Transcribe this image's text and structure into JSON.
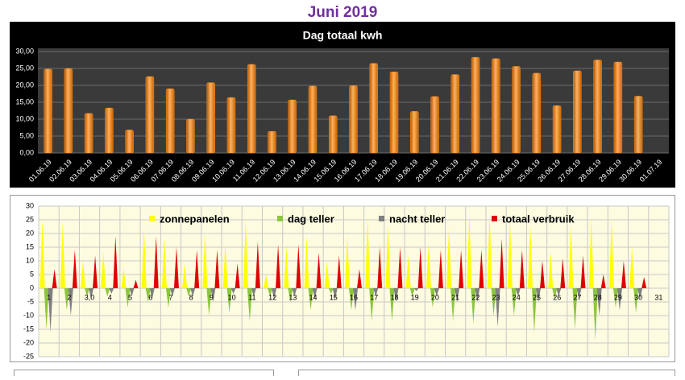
{
  "page_title": "Juni 2019",
  "chart_data": [
    {
      "type": "bar",
      "title": "Dag totaal kwh",
      "color": "#f08a1c",
      "grid": true,
      "categories": [
        "01.06.19",
        "02.06.19",
        "03.06.19",
        "04.06.19",
        "05.06.19",
        "06.06.19",
        "07.06.19",
        "08.06.19",
        "09.06.19",
        "10.06.19",
        "11.06.19",
        "12.06.19",
        "13.06.19",
        "14.06.19",
        "15.06.19",
        "16.06.19",
        "17.06.19",
        "18.06.19",
        "19.06.19",
        "20.06.19",
        "21.06.19",
        "22.06.19",
        "23.06.19",
        "24.06.19",
        "25.06.19",
        "26.06.19",
        "27.06.19",
        "28.06.19",
        "29.06.19",
        "30.06.19",
        "01.07.19"
      ],
      "values": [
        24.8,
        25.0,
        11.7,
        13.3,
        6.8,
        22.6,
        19.0,
        10.0,
        20.8,
        16.4,
        26.2,
        6.4,
        15.7,
        19.8,
        11.0,
        19.9,
        26.5,
        24.0,
        12.3,
        16.7,
        23.2,
        28.3,
        27.9,
        25.6,
        23.6,
        14.0,
        24.3,
        27.5,
        26.9,
        16.8,
        null
      ],
      "ylim": [
        0,
        30
      ],
      "yticks": [
        {
          "value": 0,
          "label": "0,00"
        },
        {
          "value": 5,
          "label": "5,00"
        },
        {
          "value": 10,
          "label": "10,00"
        },
        {
          "value": 15,
          "label": "15,00"
        },
        {
          "value": 20,
          "label": "20,00"
        },
        {
          "value": 25,
          "label": "25,00"
        },
        {
          "value": 30,
          "label": "30,00"
        }
      ]
    },
    {
      "type": "spike",
      "grid": true,
      "categories": [
        "1",
        "2",
        "3,0",
        "4",
        "5",
        "6",
        "7",
        "8",
        "9",
        "10",
        "11",
        "12",
        "13",
        "14",
        "15",
        "16",
        "17",
        "18",
        "19",
        "20",
        "21",
        "22",
        "23",
        "24",
        "25",
        "26",
        "27",
        "28",
        "29",
        "30",
        "31"
      ],
      "series": [
        {
          "name": "zonnepanelen",
          "color": "#ffff00",
          "values": [
            25,
            24,
            10,
            13,
            7,
            22,
            18,
            9,
            20,
            16,
            25,
            5,
            15,
            19,
            10,
            19,
            26,
            23,
            12,
            16,
            22,
            27,
            27,
            25,
            23,
            13,
            23,
            26,
            25,
            15,
            null
          ]
        },
        {
          "name": "dag teller",
          "color": "#8cc63f",
          "values": [
            -15,
            -8,
            -3,
            -3,
            -7,
            -5,
            -7,
            -3,
            -10,
            -9,
            -12,
            -3,
            -5,
            -8,
            -2,
            -8,
            -12,
            -12,
            -3,
            -7,
            -12,
            -13,
            -10,
            -10,
            -16,
            -4,
            -15,
            -19,
            -7,
            -9,
            null
          ]
        },
        {
          "name": "nacht teller",
          "color": "#808080",
          "values": [
            -16,
            -10,
            -4,
            -2,
            -3,
            -4,
            -3,
            -3,
            -5,
            -2,
            -3,
            -4,
            -3,
            -4,
            -4,
            -8,
            -3,
            -5,
            -1,
            -3,
            -5,
            -5,
            -14,
            -3,
            -5,
            -3,
            -4,
            -10,
            -8,
            -4,
            null
          ]
        },
        {
          "name": "totaal verbruik",
          "color": "#e00000",
          "values": [
            7,
            14,
            12,
            19,
            3,
            19,
            15,
            14,
            14,
            9,
            17,
            16,
            16,
            13,
            12,
            7,
            15,
            15,
            15,
            14,
            14,
            14,
            18,
            14,
            10,
            11,
            12,
            5,
            10,
            4,
            null
          ]
        }
      ],
      "ylim": [
        -25,
        30
      ],
      "yticks": [
        -25,
        -20,
        -15,
        -10,
        -5,
        0,
        5,
        10,
        15,
        20,
        25,
        30
      ]
    }
  ]
}
